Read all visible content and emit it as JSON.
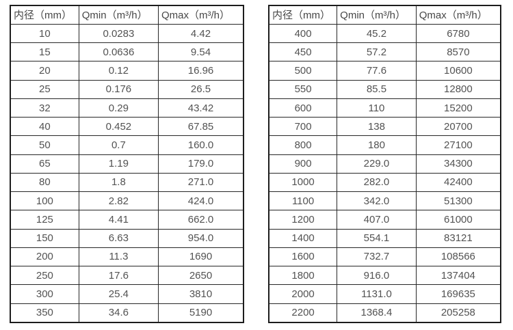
{
  "page": {
    "background_color": "#ffffff",
    "text_color": "#4f4f4f",
    "border_color": "#1c1c1c"
  },
  "tables": [
    {
      "name": "flow-spec-table-small-diameters",
      "headers": [
        "内径（mm）",
        "Qmin（m³/h）",
        "Qmax（m³/h）"
      ],
      "rows": [
        [
          "10",
          "0.0283",
          "4.42"
        ],
        [
          "15",
          "0.0636",
          "9.54"
        ],
        [
          "20",
          "0.12",
          "16.96"
        ],
        [
          "25",
          "0.176",
          "26.5"
        ],
        [
          "32",
          "0.29",
          "43.42"
        ],
        [
          "40",
          "0.452",
          "67.85"
        ],
        [
          "50",
          "0.7",
          "160.0"
        ],
        [
          "65",
          "1.19",
          "179.0"
        ],
        [
          "80",
          "1.8",
          "271.0"
        ],
        [
          "100",
          "2.82",
          "424.0"
        ],
        [
          "125",
          "4.41",
          "662.0"
        ],
        [
          "150",
          "6.63",
          "954.0"
        ],
        [
          "200",
          "11.3",
          "1690"
        ],
        [
          "250",
          "17.6",
          "2650"
        ],
        [
          "300",
          "25.4",
          "3810"
        ],
        [
          "350",
          "34.6",
          "5190"
        ]
      ]
    },
    {
      "name": "flow-spec-table-large-diameters",
      "headers": [
        "内径（mm）",
        "Qmin（m³/h）",
        "Qmax（m³/h）"
      ],
      "rows": [
        [
          "400",
          "45.2",
          "6780"
        ],
        [
          "450",
          "57.2",
          "8570"
        ],
        [
          "500",
          "77.6",
          "10600"
        ],
        [
          "550",
          "85.5",
          "12800"
        ],
        [
          "600",
          "110",
          "15200"
        ],
        [
          "700",
          "138",
          "20700"
        ],
        [
          "800",
          "180",
          "27100"
        ],
        [
          "900",
          "229.0",
          "34300"
        ],
        [
          "1000",
          "282.0",
          "42400"
        ],
        [
          "1100",
          "342.0",
          "51300"
        ],
        [
          "1200",
          "407.0",
          "61000"
        ],
        [
          "1400",
          "554.1",
          "83121"
        ],
        [
          "1600",
          "732.7",
          "108566"
        ],
        [
          "1800",
          "916.0",
          "137404"
        ],
        [
          "2000",
          "1131.0",
          "169635"
        ],
        [
          "2200",
          "1368.4",
          "205258"
        ]
      ]
    }
  ]
}
